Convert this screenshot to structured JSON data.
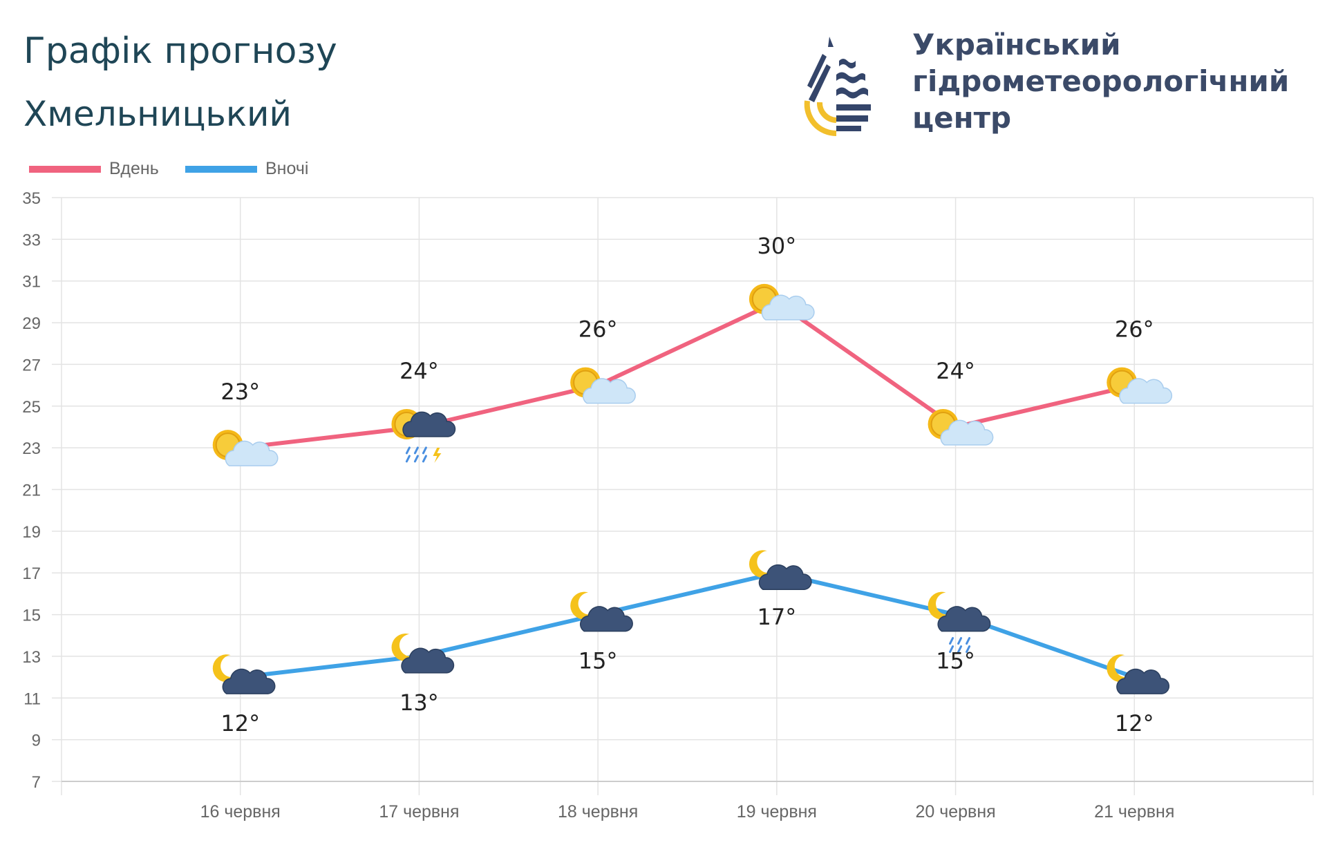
{
  "header": {
    "title": "Графік прогнозу",
    "city": "Хмельницький"
  },
  "logo": {
    "line1": "Український",
    "line2": "гідрометеорологічний",
    "line3": "центр"
  },
  "chart_data": {
    "type": "line",
    "title": "Графік прогнозу",
    "subtitle": "Хмельницький",
    "categories": [
      "16 червня",
      "17 червня",
      "18 червня",
      "19 червня",
      "20 червня",
      "21 червня"
    ],
    "ylim": [
      7,
      35
    ],
    "yticks": [
      35,
      33,
      31,
      29,
      27,
      25,
      23,
      21,
      19,
      17,
      15,
      13,
      11,
      9,
      7
    ],
    "grid": true,
    "legend_position": "top-left",
    "series": [
      {
        "name": "Вдень",
        "color": "#f0637f",
        "values": [
          23,
          24,
          26,
          30,
          24,
          26
        ],
        "labels": [
          "23°",
          "24°",
          "26°",
          "30°",
          "24°",
          "26°"
        ],
        "icons": [
          "sun-cloud-icon",
          "sun-storm-rain-icon",
          "sun-cloud-icon",
          "sun-cloud-icon",
          "sun-cloud-icon",
          "sun-cloud-icon"
        ]
      },
      {
        "name": "Вночі",
        "color": "#3fa2e6",
        "values": [
          12,
          13,
          15,
          17,
          15,
          12
        ],
        "labels": [
          "12°",
          "13°",
          "15°",
          "17°",
          "15°",
          "12°"
        ],
        "icons": [
          "moon-cloud-icon",
          "moon-cloud-icon",
          "moon-cloud-icon",
          "moon-cloud-icon",
          "moon-cloud-rain-icon",
          "moon-cloud-icon"
        ]
      }
    ]
  }
}
